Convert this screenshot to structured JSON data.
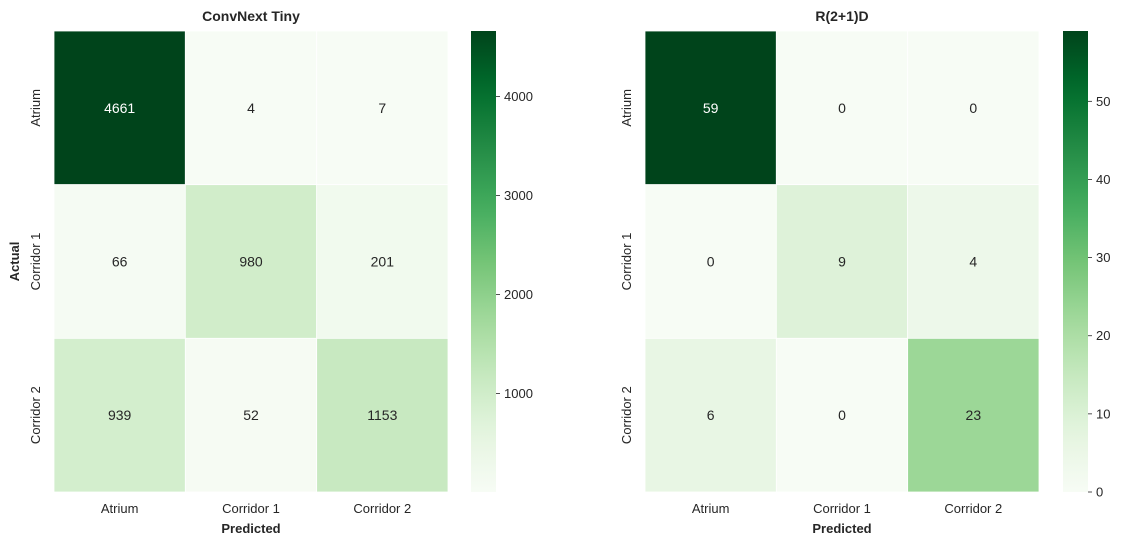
{
  "chart_data": [
    {
      "type": "heatmap",
      "title": "ConvNext Tiny",
      "xlabel": "Predicted",
      "ylabel": "Actual",
      "x_categories": [
        "Atrium",
        "Corridor 1",
        "Corridor 2"
      ],
      "y_categories": [
        "Atrium",
        "Corridor 1",
        "Corridor 2"
      ],
      "values": [
        [
          4661,
          4,
          7
        ],
        [
          66,
          980,
          201
        ],
        [
          939,
          52,
          1153
        ]
      ],
      "colormap": "Greens",
      "colorbar": {
        "min": 4,
        "max": 4661,
        "ticks": [
          1000,
          2000,
          3000,
          4000
        ]
      },
      "grid": false
    },
    {
      "type": "heatmap",
      "title": "R(2+1)D",
      "xlabel": "Predicted",
      "ylabel": "",
      "x_categories": [
        "Atrium",
        "Corridor 1",
        "Corridor 2"
      ],
      "y_categories": [
        "Atrium",
        "Corridor 1",
        "Corridor 2"
      ],
      "values": [
        [
          59,
          0,
          0
        ],
        [
          0,
          9,
          4
        ],
        [
          6,
          0,
          23
        ]
      ],
      "colormap": "Greens",
      "colorbar": {
        "min": 0,
        "max": 59,
        "ticks": [
          0,
          10,
          20,
          30,
          40,
          50
        ]
      },
      "grid": false
    }
  ],
  "colors": {
    "text_dark": "#ffffff",
    "text_light": "#262626",
    "tick": "#262626",
    "cell_border": "#ffffff"
  }
}
